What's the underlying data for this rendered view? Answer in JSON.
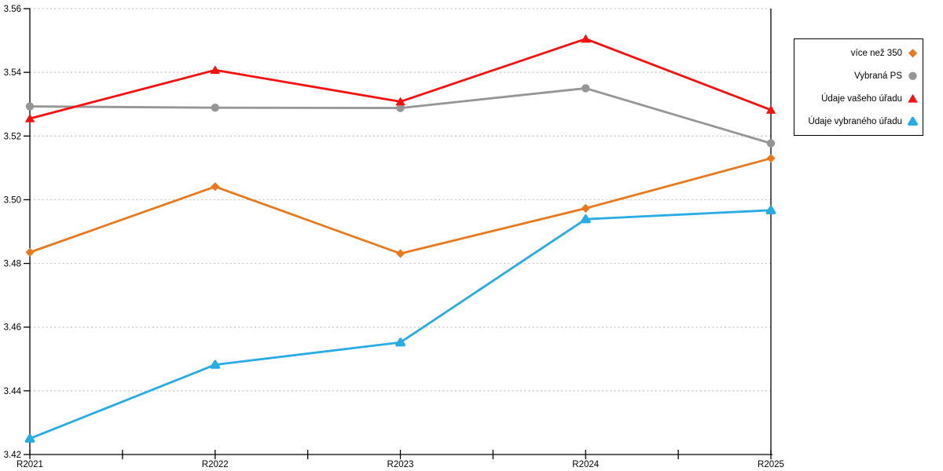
{
  "chart_data": {
    "type": "line",
    "title": "",
    "xlabel": "",
    "ylabel": "",
    "categories": [
      "R2021",
      "R2022",
      "R2023",
      "R2024",
      "R2025"
    ],
    "series": [
      {
        "name": "více než 350",
        "marker": "diamond",
        "color": "#E8791D",
        "values": [
          3.4835,
          3.5041,
          3.4831,
          3.4973,
          3.513
        ]
      },
      {
        "name": "Vybraná PS",
        "marker": "circle",
        "color": "#969696",
        "values": [
          3.5293,
          3.5289,
          3.5288,
          3.535,
          3.5177
        ]
      },
      {
        "name": "Údaje vašeho úřadu",
        "marker": "triangle",
        "color": "#FA0F0F",
        "values": [
          3.5255,
          3.5407,
          3.5308,
          3.5505,
          3.5282
        ]
      },
      {
        "name": "Údaje vybraného úřadu",
        "marker": "triangle-rounded",
        "color": "#29ABE3",
        "values": [
          3.425,
          3.4482,
          3.4552,
          3.4939,
          3.4967
        ]
      }
    ],
    "ylim": [
      3.42,
      3.56
    ],
    "ytick_step": 0.02,
    "ytick_labels": [
      "3.42",
      "3.44",
      "3.46",
      "3.48",
      "3.50",
      "3.52",
      "3.54",
      "3.56"
    ],
    "grid": "horizontal-dotted",
    "legend_position": "right"
  },
  "colors": {
    "axis": "#000000",
    "gridline": "#C4C4C4",
    "background": "#FFFFFF",
    "legend_border": "#000000",
    "tick_label": "#000000"
  }
}
